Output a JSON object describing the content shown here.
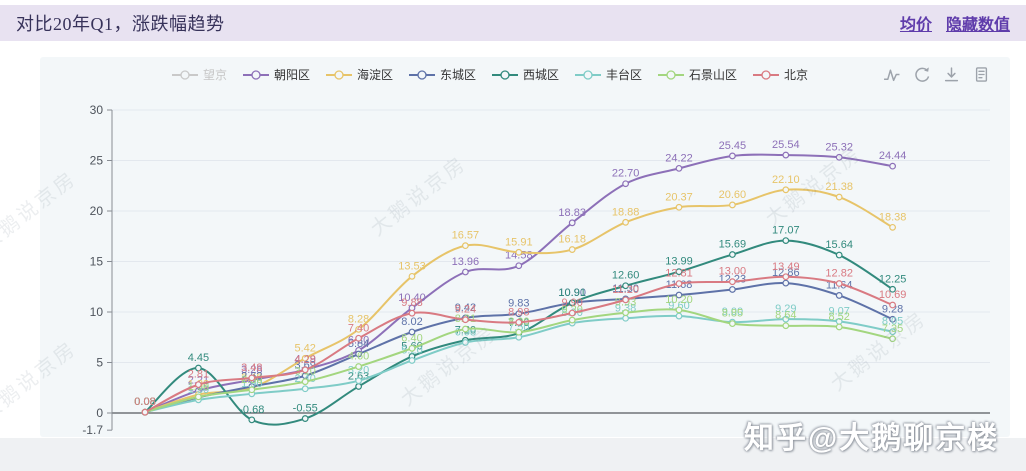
{
  "header": {
    "title": "对比20年Q1，涨跌幅趋势",
    "links": [
      {
        "label": "均价"
      },
      {
        "label": "隐藏数值"
      }
    ]
  },
  "toolbar": {
    "icons": [
      "line-chart-icon",
      "restore-icon",
      "download-icon",
      "data-view-icon"
    ]
  },
  "watermarks": {
    "diagonal_text": "大鹅说京房",
    "signature": "知乎@大鹅聊京楼"
  },
  "chart_data": {
    "type": "line",
    "title": "对比20年Q1，涨跌幅趋势",
    "smooth": true,
    "show_point_labels": true,
    "grid": true,
    "legend_position": "top-center",
    "x_count": 15,
    "x_tick_labels_visible": false,
    "ylim": [
      -1.7,
      30
    ],
    "yticks": [
      30,
      25,
      20,
      15,
      10,
      5,
      0,
      -1.7
    ],
    "series": [
      {
        "name": "望京",
        "color": "#c4c4c4",
        "selected": false,
        "values": []
      },
      {
        "name": "朝阳区",
        "color": "#8d70b8",
        "selected": true,
        "values": [
          0.08,
          2.21,
          3.28,
          4.29,
          6.2,
          10.4,
          13.96,
          14.58,
          18.83,
          22.7,
          24.22,
          25.45,
          25.54,
          25.32,
          24.44
        ]
      },
      {
        "name": "海淀区",
        "color": "#e7c469",
        "selected": true,
        "values": [
          0.08,
          1.82,
          2.48,
          5.42,
          8.28,
          13.53,
          16.57,
          15.91,
          16.18,
          18.88,
          20.37,
          20.6,
          22.1,
          21.38,
          18.38
        ]
      },
      {
        "name": "东城区",
        "color": "#5e72a8",
        "selected": true,
        "values": [
          0.08,
          1.55,
          2.62,
          3.69,
          5.84,
          8.02,
          9.42,
          9.83,
          10.9,
          11.3,
          11.68,
          12.23,
          12.86,
          11.64,
          9.28
        ]
      },
      {
        "name": "西城区",
        "color": "#328a7d",
        "selected": true,
        "values": [
          0.08,
          4.45,
          -0.68,
          -0.55,
          2.63,
          5.6,
          7.2,
          7.9,
          10.91,
          12.6,
          13.99,
          15.69,
          17.07,
          15.64,
          12.25
        ]
      },
      {
        "name": "丰台区",
        "color": "#7fccc7",
        "selected": true,
        "values": [
          0.08,
          1.3,
          1.9,
          2.4,
          3.2,
          5.2,
          6.98,
          7.5,
          8.9,
          9.38,
          9.6,
          9.0,
          9.29,
          9.07,
          8.05
        ]
      },
      {
        "name": "石景山区",
        "color": "#a3d67f",
        "selected": true,
        "values": [
          0.08,
          1.6,
          2.3,
          3.1,
          4.6,
          6.4,
          8.31,
          8.0,
          9.2,
          9.93,
          10.2,
          8.85,
          8.64,
          8.52,
          7.35
        ]
      },
      {
        "name": "北京",
        "color": "#d97a82",
        "selected": true,
        "values": [
          0.08,
          2.81,
          3.48,
          4.28,
          7.4,
          9.88,
          9.24,
          8.98,
          9.9,
          11.2,
          12.81,
          13.0,
          13.49,
          12.82,
          10.69
        ]
      }
    ]
  }
}
